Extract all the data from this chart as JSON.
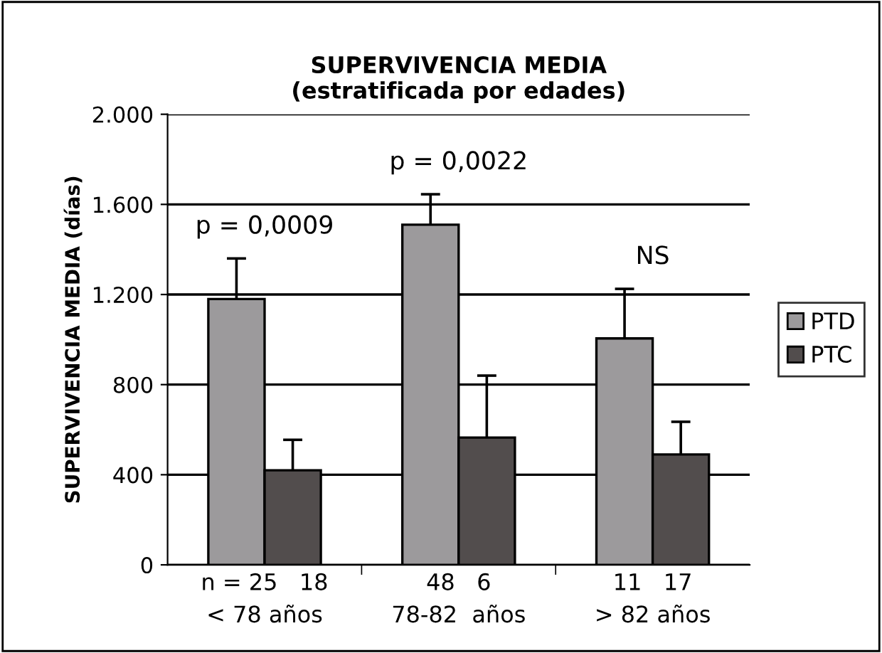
{
  "chart_data": {
    "type": "bar",
    "title": "SUPERVIVENCIA MEDIA\n(estratificada por edades)",
    "ylabel": "SUPERVIVENCIA MEDIA (días)",
    "categories": [
      "n = 25   18\n< 78 años",
      "48   6\n78-82  años",
      "11   17\n> 82 años"
    ],
    "series": [
      {
        "name": "PTD",
        "color": "#9c9a9c",
        "values": [
          1180,
          1510,
          1005
        ],
        "errors": [
          [
            1180,
            1360
          ],
          [
            1510,
            1645
          ],
          [
            1005,
            1225
          ]
        ]
      },
      {
        "name": "PTC",
        "color": "#524d4d",
        "values": [
          420,
          565,
          490
        ],
        "errors": [
          [
            420,
            555
          ],
          [
            565,
            840
          ],
          [
            490,
            635
          ]
        ]
      }
    ],
    "ylim": [
      0,
      2000
    ],
    "yticks": [
      {
        "value": 0,
        "label": "0"
      },
      {
        "value": 400,
        "label": "400"
      },
      {
        "value": 800,
        "label": "800"
      },
      {
        "value": 1200,
        "label": "1.200"
      },
      {
        "value": 1600,
        "label": "1.600"
      },
      {
        "value": 2000,
        "label": "2.000"
      }
    ],
    "grid": "y",
    "legend": "right",
    "annotations": [
      "p = 0,0009",
      "p = 0,0022",
      "NS"
    ]
  }
}
